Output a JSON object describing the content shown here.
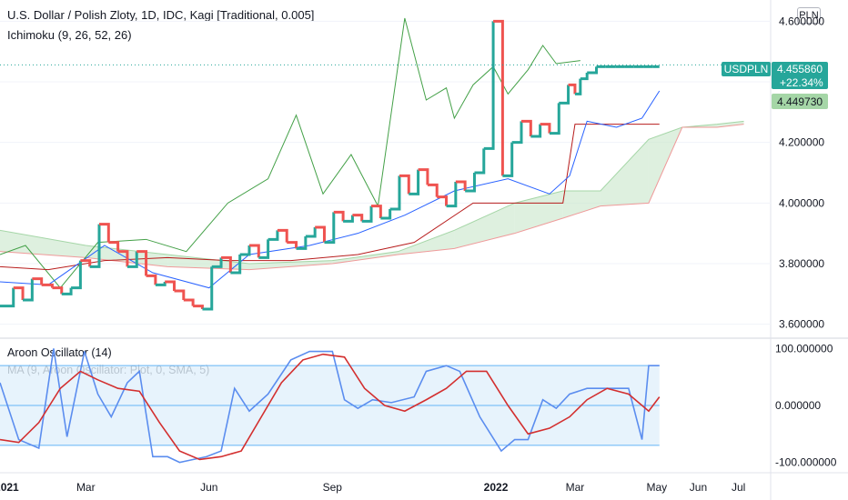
{
  "header": {
    "title": "U.S. Dollar / Polish Zloty, 1D, IDC, Kagi [Traditional, 0.005]",
    "ichimoku_label": "Ichimoku (9, 26, 52, 26)",
    "currency": "PLN"
  },
  "indicators": {
    "aroon_label": "Aroon Oscillator (14)",
    "ma_label": "MA (9, Aroon Oscillator: Plot, 0, SMA, 5)"
  },
  "price_tags": {
    "symbol": "USDPLN",
    "last_price": "4.455860",
    "change": "+22.34%",
    "ichimoku_value": "4.449730"
  },
  "colors": {
    "kagi_up": "#26a69a",
    "kagi_down": "#ef5350",
    "tenkan": "#2962ff",
    "kijun": "#b71c1c",
    "chikou": "#43a047",
    "cloud_up": "#c8e6c9",
    "cloud_down": "#ffcdd2",
    "aroon": "#5b8def",
    "aroon_ma": "#d32f2f",
    "aroon_band": "#e1f0fb"
  },
  "chart_data": [
    {
      "type": "line",
      "subtype": "kagi",
      "title": "U.S. Dollar / Polish Zloty, 1D, IDC, Kagi [Traditional, 0.005]",
      "y_ticks": [
        "4.600000",
        "4.400000",
        "4.200000",
        "4.000000",
        "3.800000",
        "3.600000"
      ],
      "y_tick_values": [
        4.6,
        4.4,
        4.2,
        4.0,
        3.8,
        3.6
      ],
      "ylim": [
        3.56,
        4.64
      ],
      "x_ticks": [
        "2021",
        "Mar",
        "Jun",
        "Sep",
        "2022",
        "Mar",
        "May",
        "Jun",
        "Jul"
      ],
      "x_tick_dates": [
        "2021-01-01",
        "2021-03-01",
        "2021-06-01",
        "2021-09-01",
        "2022-01-01",
        "2022-03-01",
        "2022-05-01",
        "2022-06-01",
        "2022-07-01"
      ],
      "xlim": [
        "2020-12-27",
        "2022-07-25"
      ],
      "last_value": 4.45586,
      "series": [
        {
          "name": "Kagi",
          "x": [
            "2020-12-27",
            "2021-01-06",
            "2021-01-13",
            "2021-01-20",
            "2021-01-27",
            "2021-02-04",
            "2021-02-11",
            "2021-02-18",
            "2021-02-25",
            "2021-03-04",
            "2021-03-11",
            "2021-03-18",
            "2021-03-25",
            "2021-04-01",
            "2021-04-08",
            "2021-04-15",
            "2021-04-22",
            "2021-04-29",
            "2021-05-06",
            "2021-05-13",
            "2021-05-20",
            "2021-05-27",
            "2021-06-03",
            "2021-06-10",
            "2021-06-17",
            "2021-06-24",
            "2021-07-01",
            "2021-07-08",
            "2021-07-15",
            "2021-07-22",
            "2021-07-29",
            "2021-08-05",
            "2021-08-12",
            "2021-08-19",
            "2021-08-26",
            "2021-09-02",
            "2021-09-09",
            "2021-09-16",
            "2021-09-23",
            "2021-09-30",
            "2021-10-07",
            "2021-10-14",
            "2021-10-21",
            "2021-10-28",
            "2021-11-04",
            "2021-11-11",
            "2021-11-18",
            "2021-11-25",
            "2021-12-02",
            "2021-12-09",
            "2021-12-16",
            "2021-12-23",
            "2021-12-30",
            "2022-01-06",
            "2022-01-13",
            "2022-01-20",
            "2022-01-27",
            "2022-02-03",
            "2022-02-10",
            "2022-02-17",
            "2022-02-24",
            "2022-03-01",
            "2022-03-05",
            "2022-03-10",
            "2022-03-17",
            "2022-03-24",
            "2022-03-31",
            "2022-04-07",
            "2022-04-14",
            "2022-04-21",
            "2022-04-28",
            "2022-05-03"
          ],
          "values": [
            3.66,
            3.72,
            3.68,
            3.75,
            3.73,
            3.72,
            3.7,
            3.72,
            3.81,
            3.79,
            3.93,
            3.87,
            3.84,
            3.79,
            3.84,
            3.76,
            3.73,
            3.74,
            3.71,
            3.68,
            3.66,
            3.65,
            3.79,
            3.82,
            3.77,
            3.83,
            3.86,
            3.82,
            3.88,
            3.91,
            3.87,
            3.85,
            3.89,
            3.92,
            3.87,
            3.97,
            3.94,
            3.96,
            3.94,
            3.99,
            3.95,
            3.98,
            4.09,
            4.03,
            4.11,
            4.06,
            4.02,
            3.99,
            4.07,
            4.04,
            4.1,
            4.18,
            4.6,
            4.09,
            4.2,
            4.27,
            4.22,
            4.26,
            4.23,
            4.33,
            4.39,
            4.36,
            4.41,
            4.43,
            4.45,
            4.45,
            4.45,
            4.45,
            4.45,
            4.45,
            4.45,
            4.45
          ]
        },
        {
          "name": "Tenkan",
          "x": [
            "2020-12-27",
            "2021-02-01",
            "2021-03-15",
            "2021-04-20",
            "2021-06-01",
            "2021-07-01",
            "2021-08-15",
            "2021-09-20",
            "2021-10-25",
            "2021-12-01",
            "2022-01-10",
            "2022-02-10",
            "2022-02-25",
            "2022-03-10",
            "2022-04-01",
            "2022-04-20",
            "2022-05-03"
          ],
          "values": [
            3.74,
            3.73,
            3.86,
            3.77,
            3.72,
            3.83,
            3.86,
            3.9,
            3.96,
            4.04,
            4.08,
            4.03,
            4.09,
            4.27,
            4.25,
            4.28,
            4.37
          ]
        },
        {
          "name": "Kijun",
          "x": [
            "2020-12-27",
            "2021-02-01",
            "2021-03-15",
            "2021-05-01",
            "2021-06-15",
            "2021-08-01",
            "2021-09-20",
            "2021-11-01",
            "2021-12-15",
            "2022-01-20",
            "2022-02-20",
            "2022-03-01",
            "2022-03-20",
            "2022-04-20",
            "2022-05-03"
          ],
          "values": [
            3.79,
            3.78,
            3.81,
            3.82,
            3.81,
            3.81,
            3.83,
            3.87,
            4.0,
            4.0,
            4.0,
            4.26,
            4.26,
            4.26,
            4.26
          ]
        },
        {
          "name": "Chikou",
          "x": [
            "2020-12-27",
            "2021-01-15",
            "2021-02-10",
            "2021-03-10",
            "2021-04-15",
            "2021-05-15",
            "2021-06-15",
            "2021-07-15",
            "2021-08-05",
            "2021-08-25",
            "2021-09-15",
            "2021-10-05",
            "2021-10-25",
            "2021-11-10",
            "2021-11-25",
            "2021-12-01",
            "2021-12-15",
            "2021-12-30",
            "2022-01-10",
            "2022-01-25",
            "2022-02-05",
            "2022-02-15",
            "2022-03-05"
          ],
          "values": [
            3.83,
            3.86,
            3.72,
            3.87,
            3.88,
            3.84,
            4.0,
            4.08,
            4.29,
            4.03,
            4.16,
            3.99,
            4.61,
            4.34,
            4.38,
            4.28,
            4.39,
            4.45,
            4.36,
            4.44,
            4.52,
            4.46,
            4.47
          ]
        },
        {
          "name": "Senkou Span A",
          "x": [
            "2020-12-27",
            "2021-03-01",
            "2021-05-01",
            "2021-07-01",
            "2021-09-01",
            "2021-10-20",
            "2021-12-01",
            "2022-01-15",
            "2022-02-20",
            "2022-03-20",
            "2022-04-25",
            "2022-05-20",
            "2022-06-15",
            "2022-07-05"
          ],
          "values": [
            3.91,
            3.86,
            3.83,
            3.8,
            3.81,
            3.84,
            3.91,
            4.0,
            4.04,
            4.04,
            4.21,
            4.25,
            4.26,
            4.27
          ]
        },
        {
          "name": "Senkou Span B",
          "x": [
            "2020-12-27",
            "2021-03-01",
            "2021-05-01",
            "2021-07-01",
            "2021-09-01",
            "2021-10-20",
            "2021-12-01",
            "2022-01-15",
            "2022-02-20",
            "2022-03-20",
            "2022-04-25",
            "2022-05-20",
            "2022-06-15",
            "2022-07-05"
          ],
          "values": [
            3.84,
            3.82,
            3.79,
            3.78,
            3.8,
            3.83,
            3.85,
            3.9,
            3.95,
            3.99,
            4.0,
            4.25,
            4.25,
            4.26
          ]
        }
      ]
    },
    {
      "type": "line",
      "title": "Aroon Oscillator (14)",
      "y_ticks": [
        "100.000000",
        "0.000000",
        "-100.000000"
      ],
      "y_tick_values": [
        100,
        0,
        -100
      ],
      "ylim": [
        -115,
        115
      ],
      "bands": [
        70,
        0,
        -70
      ],
      "series": [
        {
          "name": "Aroon Oscillator (14)",
          "x": [
            "2020-12-27",
            "2021-01-10",
            "2021-01-25",
            "2021-02-05",
            "2021-02-15",
            "2021-02-28",
            "2021-03-10",
            "2021-03-20",
            "2021-04-01",
            "2021-04-10",
            "2021-04-20",
            "2021-05-01",
            "2021-05-10",
            "2021-05-20",
            "2021-05-30",
            "2021-06-10",
            "2021-06-20",
            "2021-07-01",
            "2021-07-15",
            "2021-08-01",
            "2021-08-15",
            "2021-09-01",
            "2021-09-10",
            "2021-09-20",
            "2021-10-01",
            "2021-10-15",
            "2021-11-01",
            "2021-11-10",
            "2021-11-25",
            "2021-12-05",
            "2021-12-20",
            "2022-01-05",
            "2022-01-15",
            "2022-01-25",
            "2022-02-05",
            "2022-02-15",
            "2022-02-25",
            "2022-03-10",
            "2022-03-25",
            "2022-04-10",
            "2022-04-20",
            "2022-04-25",
            "2022-05-03"
          ],
          "values": [
            40,
            -60,
            -75,
            100,
            -55,
            95,
            20,
            -20,
            40,
            60,
            -90,
            -90,
            -100,
            -95,
            -90,
            -80,
            30,
            -10,
            20,
            80,
            95,
            95,
            10,
            -5,
            10,
            5,
            15,
            60,
            70,
            60,
            -20,
            -80,
            -60,
            -60,
            10,
            -5,
            20,
            30,
            30,
            30,
            -60,
            70,
            70
          ]
        },
        {
          "name": "MA (9, Aroon Oscillator: Plot, 0, SMA, 5)",
          "x": [
            "2020-12-27",
            "2021-01-10",
            "2021-01-25",
            "2021-02-10",
            "2021-02-25",
            "2021-03-10",
            "2021-03-25",
            "2021-04-10",
            "2021-04-25",
            "2021-05-10",
            "2021-05-25",
            "2021-06-10",
            "2021-06-25",
            "2021-07-10",
            "2021-07-25",
            "2021-08-10",
            "2021-08-25",
            "2021-09-10",
            "2021-09-25",
            "2021-10-10",
            "2021-10-25",
            "2021-11-10",
            "2021-11-25",
            "2021-12-10",
            "2021-12-25",
            "2022-01-10",
            "2022-01-25",
            "2022-02-10",
            "2022-02-25",
            "2022-03-10",
            "2022-03-25",
            "2022-04-10",
            "2022-04-25",
            "2022-05-03"
          ],
          "values": [
            -60,
            -65,
            -30,
            30,
            60,
            45,
            30,
            25,
            -30,
            -80,
            -95,
            -90,
            -80,
            -20,
            40,
            80,
            90,
            85,
            30,
            0,
            -10,
            10,
            30,
            60,
            60,
            0,
            -50,
            -40,
            -20,
            10,
            30,
            20,
            -10,
            15
          ]
        }
      ]
    }
  ]
}
